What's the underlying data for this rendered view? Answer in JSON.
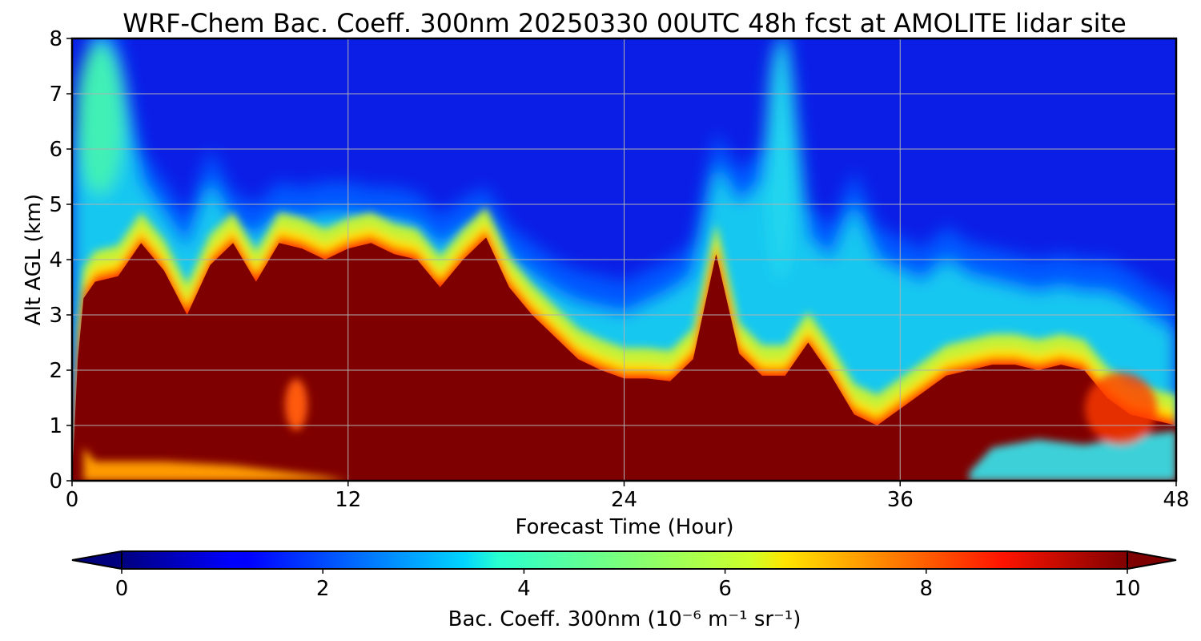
{
  "chart_data": {
    "type": "heatmap",
    "title": "WRF-Chem Bac. Coeff. 300nm  20250330 00UTC 48h fcst at AMOLITE lidar site",
    "xlabel": "Forecast Time (Hour)",
    "ylabel": "Alt AGL (km)",
    "xlim": [
      0,
      48
    ],
    "ylim": [
      0,
      8
    ],
    "xticks": [
      0,
      12,
      24,
      36,
      48
    ],
    "yticks": [
      0,
      1,
      2,
      3,
      4,
      5,
      6,
      7,
      8
    ],
    "grid": true,
    "colormap": "jet",
    "colorbar": {
      "label_main": "Bac. Coeff. 300nm",
      "label_unit": "(10⁻⁶ m⁻¹ sr⁻¹)",
      "ticks": [
        0,
        2,
        4,
        6,
        8,
        10
      ],
      "range": [
        0,
        10
      ],
      "extend": "both",
      "orientation": "horizontal"
    },
    "features": {
      "thick_layer_top_km": {
        "x": [
          0,
          0.25,
          0.5,
          1,
          2,
          3,
          4,
          5,
          6,
          7,
          8,
          9,
          10,
          11,
          12,
          13,
          14,
          15,
          16,
          17,
          18,
          19,
          20,
          21,
          22,
          23,
          24,
          25,
          26,
          27,
          28,
          29,
          30,
          31,
          32,
          33,
          34,
          35,
          36,
          37,
          38,
          39,
          40,
          41,
          42,
          43,
          44,
          45,
          46,
          47,
          48
        ],
        "y": [
          0,
          2.2,
          3.3,
          3.6,
          3.7,
          4.3,
          3.8,
          3.0,
          3.9,
          4.3,
          3.6,
          4.3,
          4.2,
          4.0,
          4.2,
          4.3,
          4.1,
          4.0,
          3.5,
          4.0,
          4.4,
          3.5,
          3.0,
          2.6,
          2.2,
          2.0,
          1.85,
          1.85,
          1.8,
          2.2,
          4.1,
          2.3,
          1.9,
          1.9,
          2.5,
          1.9,
          1.2,
          1.0,
          1.3,
          1.6,
          1.9,
          2.0,
          2.1,
          2.1,
          2.0,
          2.1,
          2.0,
          1.5,
          1.2,
          1.1,
          1.0
        ]
      },
      "surface_clean_layer_top_km": {
        "x": [
          0.5,
          1,
          4,
          7,
          9,
          11,
          12
        ],
        "y": [
          0.6,
          0.35,
          0.35,
          0.28,
          0.18,
          0.08,
          0
        ]
      },
      "upper_plume_top_km": {
        "x": [
          0,
          1,
          2,
          3,
          4,
          5,
          6,
          7,
          8,
          9,
          10,
          11,
          12,
          13,
          14,
          15,
          16,
          17,
          18,
          19,
          20,
          21,
          22,
          23,
          24,
          25,
          26,
          27,
          28,
          29,
          30,
          31,
          32,
          33,
          34,
          35,
          36,
          37,
          38,
          39,
          40,
          41,
          42,
          43,
          44,
          45,
          46,
          47,
          48
        ],
        "y": [
          5.5,
          8.0,
          7.5,
          5.4,
          4.8,
          4.2,
          5.4,
          4.6,
          4.4,
          4.8,
          4.7,
          4.8,
          4.8,
          4.7,
          4.7,
          4.6,
          4.2,
          4.5,
          4.7,
          4.0,
          3.7,
          3.4,
          3.2,
          3.1,
          3.0,
          3.2,
          3.4,
          3.7,
          5.7,
          5.0,
          5.4,
          8.0,
          4.4,
          4.0,
          5.0,
          4.0,
          3.8,
          3.6,
          4.0,
          3.7,
          3.6,
          3.5,
          3.4,
          3.5,
          3.4,
          3.4,
          3.2,
          2.9,
          2.7
        ]
      },
      "lower_right_clean_top_km": {
        "x": [
          39,
          40,
          42,
          44,
          46,
          48
        ],
        "y": [
          0.15,
          0.6,
          0.75,
          0.65,
          0.8,
          0.9
        ]
      }
    }
  }
}
